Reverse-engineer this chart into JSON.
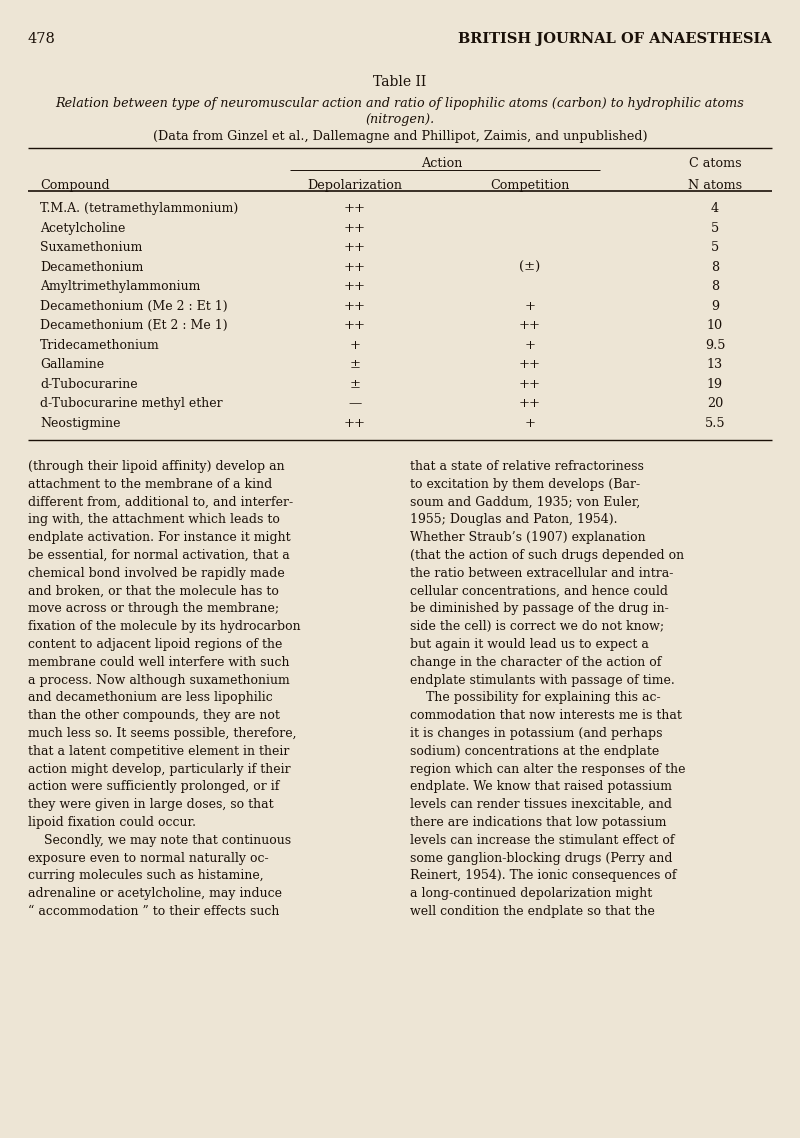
{
  "background_color": "#ede5d5",
  "page_number": "478",
  "journal_title": "BRITISH JOURNAL OF ANAESTHESIA",
  "table_title": "Table II",
  "table_subtitle": "Relation between type of neuromuscular action and ratio of lipophilic atoms (carbon) to hydrophilic atoms\n(nitrogen).",
  "table_source": "(Data from Ginzel et al., Dallemagne and Phillipot, Zaimis, and unpublished)",
  "action_header": "Action",
  "catoms_header": "C atoms",
  "col_depol": "Depolarization",
  "col_comp": "Competition",
  "col_compound": "Compound",
  "col_natoms": "N atoms",
  "rows": [
    [
      "T.M.A. (tetramethylammonium)",
      "++",
      "",
      "4"
    ],
    [
      "Acetylcholine",
      "++",
      "",
      "5"
    ],
    [
      "Suxamethonium",
      "++",
      "",
      "5"
    ],
    [
      "Decamethonium",
      "++",
      "(±)",
      "8"
    ],
    [
      "Amyltrimethylammonium",
      "++",
      "",
      "8"
    ],
    [
      "Decamethonium (Me 2 : Et 1)",
      "++",
      "+",
      "9"
    ],
    [
      "Decamethonium (Et 2 : Me 1)",
      "++",
      "++",
      "10"
    ],
    [
      "Tridecamethonium",
      "+",
      "+",
      "9.5"
    ],
    [
      "Gallamine",
      "±",
      "++",
      "13"
    ],
    [
      "d-Tubocurarine",
      "±",
      "++",
      "19"
    ],
    [
      "d-Tubocurarine methyl ether",
      "—",
      "++",
      "20"
    ],
    [
      "Neostigmine",
      "++",
      "+",
      "5.5"
    ]
  ],
  "body_text_left": [
    "(through their lipoid affinity) develop an",
    "attachment to the membrane of a kind",
    "different from, additional to, and interfer-",
    "ing with, the attachment which leads to",
    "endplate activation. For instance it might",
    "be essential, for normal activation, that a",
    "chemical bond involved be rapidly made",
    "and broken, or that the molecule has to",
    "move across or through the membrane;",
    "fixation of the molecule by its hydrocarbon",
    "content to adjacent lipoid regions of the",
    "membrane could well interfere with such",
    "a process. Now although suxamethonium",
    "and decamethonium are less lipophilic",
    "than the other compounds, they are not",
    "much less so. It seems possible, therefore,",
    "that a latent competitive element in their",
    "action might develop, particularly if their",
    "action were sufficiently prolonged, or if",
    "they were given in large doses, so that",
    "lipoid fixation could occur.",
    "    Secondly, we may note that continuous",
    "exposure even to normal naturally oc-",
    "curring molecules such as histamine,",
    "adrenaline or acetylcholine, may induce",
    "“ accommodation ” to their effects such"
  ],
  "body_text_right": [
    "that a state of relative refractoriness",
    "to excitation by them develops (Bar-",
    "soum and Gaddum, 1935; von Euler,",
    "1955; Douglas and Paton, 1954).",
    "Whether Straub’s (1907) explanation",
    "(that the action of such drugs depended on",
    "the ratio between extracellular and intra-",
    "cellular concentrations, and hence could",
    "be diminished by passage of the drug in-",
    "side the cell) is correct we do not know;",
    "but again it would lead us to expect a",
    "change in the character of the action of",
    "endplate stimulants with passage of time.",
    "    The possibility for explaining this ac-",
    "commodation that now interests me is that",
    "it is changes in potassium (and perhaps",
    "sodium) concentrations at the endplate",
    "region which can alter the responses of the",
    "endplate. We know that raised potassium",
    "levels can render tissues inexcitable, and",
    "there are indications that low potassium",
    "levels can increase the stimulant effect of",
    "some ganglion-blocking drugs (Perry and",
    "Reinert, 1954). The ionic consequences of",
    "a long-continued depolarization might",
    "well condition the endplate so that the"
  ],
  "text_color": "#1a1008",
  "line_color": "#1a1008",
  "figwidth": 8.0,
  "figheight": 11.38,
  "dpi": 100
}
